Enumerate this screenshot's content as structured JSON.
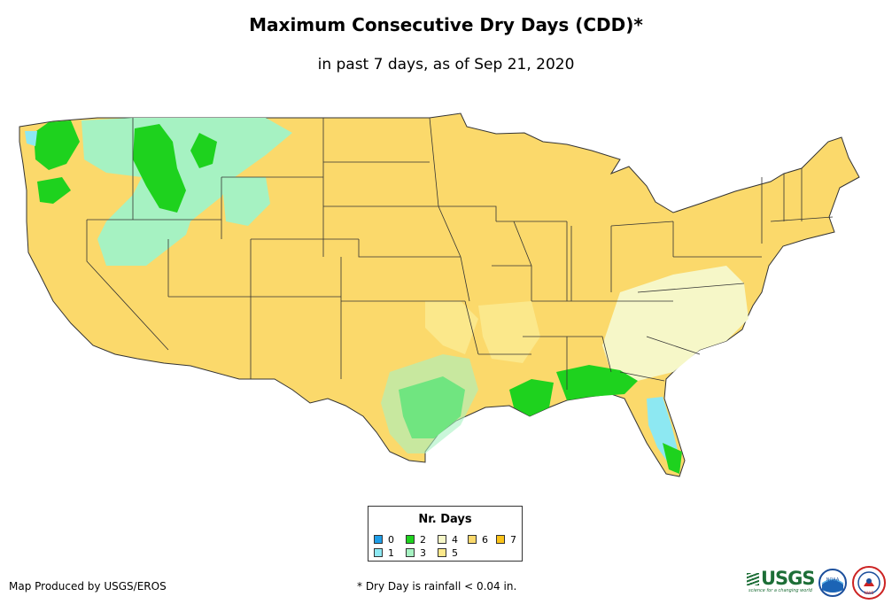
{
  "title": "Maximum Consecutive Dry Days (CDD)*",
  "subtitle": "in past 7 days, as of Sep 21, 2020",
  "legend": {
    "title": "Nr. Days",
    "items": [
      {
        "label": "0",
        "color": "#1f9ee8"
      },
      {
        "label": "1",
        "color": "#8de8f2"
      },
      {
        "label": "2",
        "color": "#1ed21e"
      },
      {
        "label": "3",
        "color": "#a6f2c2"
      },
      {
        "label": "4",
        "color": "#f6f7c8"
      },
      {
        "label": "5",
        "color": "#fbe88b"
      },
      {
        "label": "6",
        "color": "#fbd96b"
      },
      {
        "label": "7",
        "color": "#fbc318"
      }
    ]
  },
  "credit": "Map Produced by USGS/EROS",
  "footnote": "* Dry Day is rainfall < 0.04 in.",
  "logos": {
    "usgs_text": "USGS",
    "usgs_tagline": "science for a changing world",
    "noaa_text": "NOAA",
    "nws_text": "NWS"
  },
  "map_colors": {
    "base": "#fbd96b",
    "border": "#333333"
  }
}
